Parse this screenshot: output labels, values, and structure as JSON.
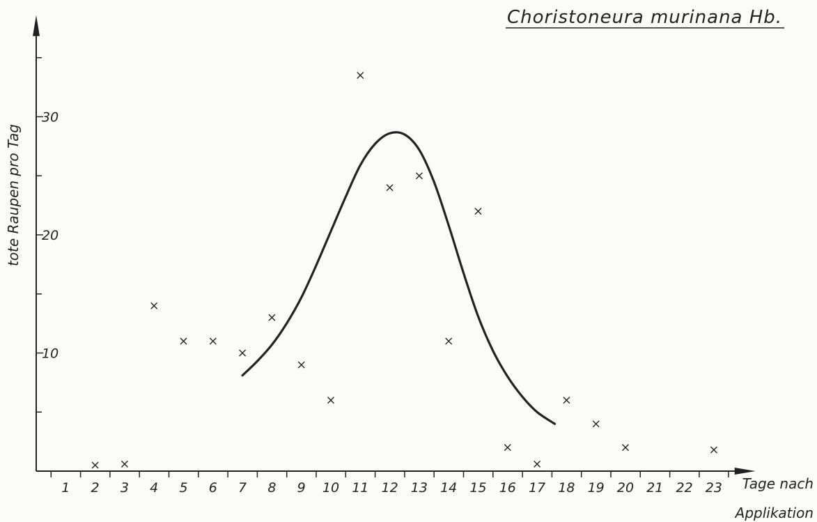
{
  "chart_data": {
    "type": "scatter",
    "title": "Choristoneura murinana Hb.",
    "xlabel": [
      "Tage nach",
      "Applikation"
    ],
    "ylabel": "tote Raupen pro Tag",
    "xlim": [
      0,
      23.8
    ],
    "ylim": [
      0,
      36
    ],
    "x_ticks": [
      1,
      2,
      3,
      4,
      5,
      6,
      7,
      8,
      9,
      10,
      11,
      12,
      13,
      14,
      15,
      16,
      17,
      18,
      19,
      20,
      21,
      22,
      23
    ],
    "y_ticks_labeled": [
      10,
      20,
      30
    ],
    "y_ticks_minor": [
      5,
      15,
      25,
      35
    ],
    "grid": false,
    "series": [
      {
        "kind": "points",
        "marker": "x",
        "x": [
          2,
          3,
          4,
          5,
          6,
          7,
          8,
          9,
          10,
          11,
          12,
          13,
          14,
          15,
          16,
          17,
          18,
          19,
          20,
          23
        ],
        "y": [
          0.5,
          0.6,
          14,
          11,
          11,
          10,
          13,
          9,
          6,
          33.5,
          24,
          25,
          11,
          22,
          2,
          0.6,
          6,
          4,
          2,
          1.8
        ]
      },
      {
        "kind": "curve",
        "x": [
          7,
          7.5,
          8,
          8.5,
          9,
          9.5,
          10,
          10.5,
          11,
          11.5,
          12,
          12.5,
          13,
          13.5,
          14,
          14.5,
          15,
          15.5,
          16,
          16.5,
          17,
          17.6
        ],
        "y": [
          8.1,
          9.3,
          10.7,
          12.5,
          14.7,
          17.4,
          20.3,
          23.2,
          25.9,
          27.7,
          28.6,
          28.5,
          27.2,
          24.5,
          20.8,
          16.8,
          13.1,
          10.2,
          8.0,
          6.3,
          5.0,
          4.0
        ]
      }
    ]
  }
}
